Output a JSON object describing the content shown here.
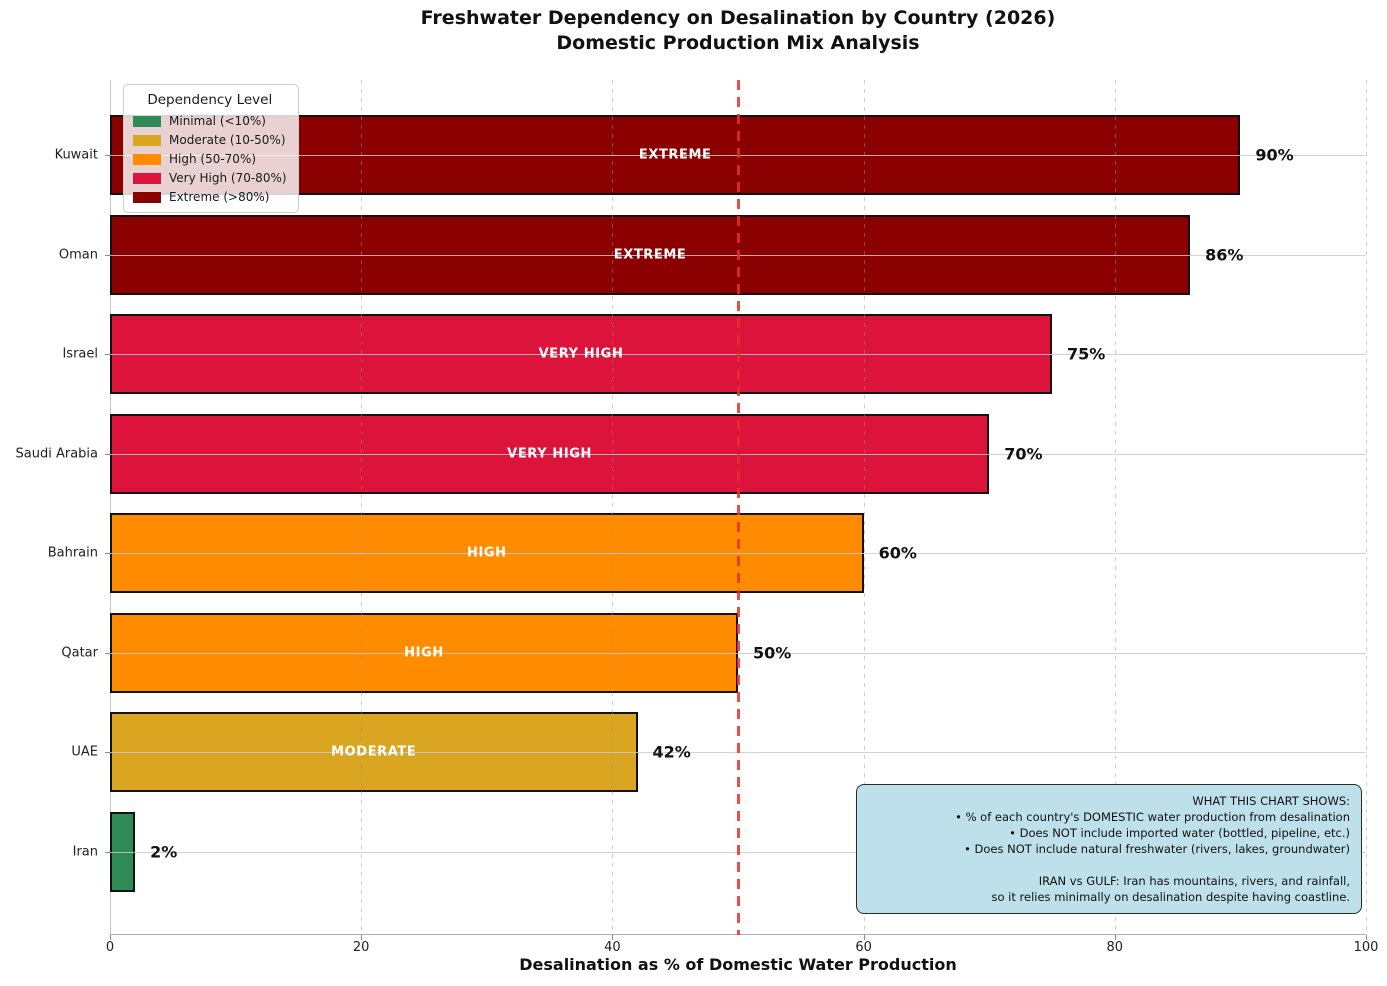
{
  "title": {
    "line1": "Freshwater Dependency on Desalination by Country (2026)",
    "line2": "Domestic Production Mix Analysis"
  },
  "chart_data": {
    "type": "bar",
    "orientation": "horizontal",
    "title": "Freshwater Dependency on Desalination by Country (2026)\nDomestic Production Mix Analysis",
    "xlabel": "Desalination as % of Domestic Water Production",
    "ylabel": "",
    "categories": [
      "Kuwait",
      "Oman",
      "Israel",
      "Saudi Arabia",
      "Bahrain",
      "Qatar",
      "UAE",
      "Iran"
    ],
    "values": [
      90,
      86,
      75,
      70,
      60,
      50,
      42,
      2
    ],
    "value_labels": [
      "90%",
      "86%",
      "75%",
      "70%",
      "60%",
      "50%",
      "42%",
      "2%"
    ],
    "bar_inner_labels": [
      "EXTREME",
      "EXTREME",
      "VERY HIGH",
      "VERY HIGH",
      "HIGH",
      "HIGH",
      "MODERATE",
      ""
    ],
    "bar_colors": [
      "#8B0000",
      "#8B0000",
      "#DC143C",
      "#DC143C",
      "#FF8C00",
      "#FF8C00",
      "#DAA520",
      "#2E8B57"
    ],
    "bar_edge_color": "#121212",
    "xlim": [
      0,
      100
    ],
    "xticks": [
      0,
      20,
      40,
      60,
      80,
      100
    ],
    "xtick_labels": [
      "0",
      "20",
      "40",
      "60",
      "80",
      "100"
    ],
    "grid": "both",
    "reference_line": {
      "x": 50,
      "color": "#E43028",
      "style": "dashed"
    },
    "legend_position": "upper left"
  },
  "legend": {
    "title": "Dependency Level",
    "items": [
      {
        "label": "Minimal (<10%)",
        "color": "#2E8B57"
      },
      {
        "label": "Moderate (10-50%)",
        "color": "#DAA520"
      },
      {
        "label": "High (50-70%)",
        "color": "#FF8C00"
      },
      {
        "label": "Very High (70-80%)",
        "color": "#DC143C"
      },
      {
        "label": "Extreme (>80%)",
        "color": "#8B0000"
      }
    ]
  },
  "info_box": {
    "lines": [
      "WHAT THIS CHART SHOWS:",
      "• % of each country's DOMESTIC water production from desalination",
      "• Does NOT include imported water (bottled, pipeline, etc.)",
      "• Does NOT include natural freshwater (rivers, lakes, groundwater)",
      "",
      "IRAN vs GULF: Iran has mountains, rivers, and rainfall,",
      "so it relies minimally on desalination despite having coastline."
    ]
  }
}
